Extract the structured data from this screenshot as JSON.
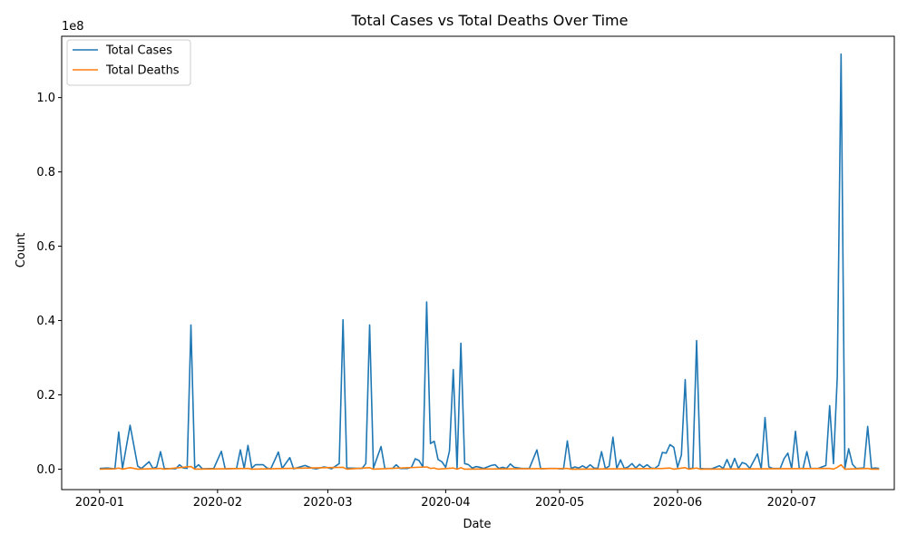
{
  "chart_data": {
    "type": "line",
    "title": "Total Cases vs Total Deaths Over Time",
    "xlabel": "Date",
    "ylabel": "Count",
    "scale_label": "1e8",
    "y_scale": 100000000,
    "ylim": [
      -5500000,
      116500000
    ],
    "xlim": [
      "2019-12-22",
      "2020-07-28"
    ],
    "x_ticks": [
      "2020-01-01",
      "2020-02-01",
      "2020-03-01",
      "2020-04-01",
      "2020-05-01",
      "2020-06-01",
      "2020-07-01"
    ],
    "x_tick_labels": [
      "2020-01",
      "2020-02",
      "2020-03",
      "2020-04",
      "2020-05",
      "2020-06",
      "2020-07"
    ],
    "y_ticks": [
      0,
      20000000,
      40000000,
      60000000,
      80000000,
      100000000
    ],
    "y_tick_labels": [
      "0.0",
      "0.2",
      "0.4",
      "0.6",
      "0.8",
      "1.0"
    ],
    "legend_position": "upper-left",
    "grid": false,
    "series": [
      {
        "name": "Total Cases",
        "color": "#1f77b4",
        "points": [
          [
            "2020-01-01",
            200000
          ],
          [
            "2020-01-03",
            300000
          ],
          [
            "2020-01-05",
            100000
          ],
          [
            "2020-01-06",
            10000000
          ],
          [
            "2020-01-07",
            200000
          ],
          [
            "2020-01-09",
            11800000
          ],
          [
            "2020-01-11",
            800000
          ],
          [
            "2020-01-12",
            200000
          ],
          [
            "2020-01-14",
            2000000
          ],
          [
            "2020-01-15",
            200000
          ],
          [
            "2020-01-16",
            600000
          ],
          [
            "2020-01-17",
            4700000
          ],
          [
            "2020-01-18",
            200000
          ],
          [
            "2020-01-21",
            100000
          ],
          [
            "2020-01-22",
            1200000
          ],
          [
            "2020-01-23",
            300000
          ],
          [
            "2020-01-24",
            200000
          ],
          [
            "2020-01-25",
            38800000
          ],
          [
            "2020-01-26",
            300000
          ],
          [
            "2020-01-27",
            1200000
          ],
          [
            "2020-01-28",
            100000
          ],
          [
            "2020-01-31",
            200000
          ],
          [
            "2020-02-02",
            4800000
          ],
          [
            "2020-02-03",
            100000
          ],
          [
            "2020-02-06",
            200000
          ],
          [
            "2020-02-07",
            5200000
          ],
          [
            "2020-02-08",
            200000
          ],
          [
            "2020-02-09",
            6400000
          ],
          [
            "2020-02-10",
            300000
          ],
          [
            "2020-02-11",
            1200000
          ],
          [
            "2020-02-13",
            1200000
          ],
          [
            "2020-02-14",
            300000
          ],
          [
            "2020-02-15",
            100000
          ],
          [
            "2020-02-17",
            4600000
          ],
          [
            "2020-02-18",
            200000
          ],
          [
            "2020-02-20",
            3100000
          ],
          [
            "2020-02-21",
            100000
          ],
          [
            "2020-02-23",
            700000
          ],
          [
            "2020-02-24",
            1000000
          ],
          [
            "2020-02-26",
            200000
          ],
          [
            "2020-02-27",
            100000
          ],
          [
            "2020-02-29",
            600000
          ],
          [
            "2020-03-01",
            400000
          ],
          [
            "2020-03-02",
            100000
          ],
          [
            "2020-03-04",
            1500000
          ],
          [
            "2020-03-05",
            40200000
          ],
          [
            "2020-03-06",
            300000
          ],
          [
            "2020-03-10",
            200000
          ],
          [
            "2020-03-11",
            1500000
          ],
          [
            "2020-03-12",
            38800000
          ],
          [
            "2020-03-13",
            300000
          ],
          [
            "2020-03-15",
            6100000
          ],
          [
            "2020-03-16",
            200000
          ],
          [
            "2020-03-18",
            200000
          ],
          [
            "2020-03-19",
            1200000
          ],
          [
            "2020-03-20",
            200000
          ],
          [
            "2020-03-22",
            200000
          ],
          [
            "2020-03-23",
            500000
          ],
          [
            "2020-03-24",
            2800000
          ],
          [
            "2020-03-25",
            2300000
          ],
          [
            "2020-03-26",
            600000
          ],
          [
            "2020-03-27",
            45000000
          ],
          [
            "2020-03-28",
            6900000
          ],
          [
            "2020-03-29",
            7500000
          ],
          [
            "2020-03-30",
            2600000
          ],
          [
            "2020-03-31",
            2000000
          ],
          [
            "2020-04-01",
            500000
          ],
          [
            "2020-04-02",
            4900000
          ],
          [
            "2020-04-03",
            26800000
          ],
          [
            "2020-04-04",
            200000
          ],
          [
            "2020-04-05",
            33900000
          ],
          [
            "2020-04-06",
            1500000
          ],
          [
            "2020-04-07",
            1200000
          ],
          [
            "2020-04-08",
            300000
          ],
          [
            "2020-04-09",
            700000
          ],
          [
            "2020-04-10",
            500000
          ],
          [
            "2020-04-11",
            200000
          ],
          [
            "2020-04-13",
            1000000
          ],
          [
            "2020-04-14",
            1200000
          ],
          [
            "2020-04-15",
            200000
          ],
          [
            "2020-04-16",
            500000
          ],
          [
            "2020-04-17",
            200000
          ],
          [
            "2020-04-18",
            1400000
          ],
          [
            "2020-04-19",
            500000
          ],
          [
            "2020-04-21",
            200000
          ],
          [
            "2020-04-22",
            200000
          ],
          [
            "2020-04-23",
            200000
          ],
          [
            "2020-04-25",
            5200000
          ],
          [
            "2020-04-26",
            100000
          ],
          [
            "2020-04-28",
            200000
          ],
          [
            "2020-04-30",
            200000
          ],
          [
            "2020-05-01",
            100000
          ],
          [
            "2020-05-02",
            100000
          ],
          [
            "2020-05-03",
            7600000
          ],
          [
            "2020-05-04",
            200000
          ],
          [
            "2020-05-05",
            600000
          ],
          [
            "2020-05-06",
            300000
          ],
          [
            "2020-05-07",
            900000
          ],
          [
            "2020-05-08",
            300000
          ],
          [
            "2020-05-09",
            1200000
          ],
          [
            "2020-05-10",
            300000
          ],
          [
            "2020-05-11",
            200000
          ],
          [
            "2020-05-12",
            4700000
          ],
          [
            "2020-05-13",
            200000
          ],
          [
            "2020-05-14",
            800000
          ],
          [
            "2020-05-15",
            8600000
          ],
          [
            "2020-05-16",
            200000
          ],
          [
            "2020-05-17",
            2500000
          ],
          [
            "2020-05-18",
            200000
          ],
          [
            "2020-05-19",
            600000
          ],
          [
            "2020-05-20",
            1500000
          ],
          [
            "2020-05-21",
            300000
          ],
          [
            "2020-05-22",
            1300000
          ],
          [
            "2020-05-23",
            500000
          ],
          [
            "2020-05-24",
            1200000
          ],
          [
            "2020-05-25",
            300000
          ],
          [
            "2020-05-26",
            200000
          ],
          [
            "2020-05-27",
            1000000
          ],
          [
            "2020-05-28",
            4500000
          ],
          [
            "2020-05-29",
            4300000
          ],
          [
            "2020-05-30",
            6600000
          ],
          [
            "2020-05-31",
            5900000
          ],
          [
            "2020-06-01",
            500000
          ],
          [
            "2020-06-02",
            3800000
          ],
          [
            "2020-06-03",
            24100000
          ],
          [
            "2020-06-04",
            100000
          ],
          [
            "2020-06-05",
            300000
          ],
          [
            "2020-06-06",
            34600000
          ],
          [
            "2020-06-07",
            200000
          ],
          [
            "2020-06-08",
            100000
          ],
          [
            "2020-06-10",
            100000
          ],
          [
            "2020-06-12",
            900000
          ],
          [
            "2020-06-13",
            200000
          ],
          [
            "2020-06-14",
            2600000
          ],
          [
            "2020-06-15",
            200000
          ],
          [
            "2020-06-16",
            2900000
          ],
          [
            "2020-06-17",
            200000
          ],
          [
            "2020-06-18",
            1800000
          ],
          [
            "2020-06-19",
            1400000
          ],
          [
            "2020-06-20",
            200000
          ],
          [
            "2020-06-22",
            4100000
          ],
          [
            "2020-06-23",
            100000
          ],
          [
            "2020-06-24",
            13900000
          ],
          [
            "2020-06-25",
            600000
          ],
          [
            "2020-06-26",
            200000
          ],
          [
            "2020-06-28",
            200000
          ],
          [
            "2020-06-29",
            2800000
          ],
          [
            "2020-06-30",
            4300000
          ],
          [
            "2020-07-01",
            200000
          ],
          [
            "2020-07-02",
            10200000
          ],
          [
            "2020-07-03",
            200000
          ],
          [
            "2020-07-04",
            200000
          ],
          [
            "2020-07-05",
            4700000
          ],
          [
            "2020-07-06",
            200000
          ],
          [
            "2020-07-08",
            200000
          ],
          [
            "2020-07-10",
            1000000
          ],
          [
            "2020-07-11",
            17100000
          ],
          [
            "2020-07-12",
            1500000
          ],
          [
            "2020-07-13",
            24800000
          ],
          [
            "2020-07-14",
            111700000
          ],
          [
            "2020-07-15",
            200000
          ],
          [
            "2020-07-16",
            5500000
          ],
          [
            "2020-07-17",
            1300000
          ],
          [
            "2020-07-18",
            200000
          ],
          [
            "2020-07-20",
            300000
          ],
          [
            "2020-07-21",
            11500000
          ],
          [
            "2020-07-22",
            200000
          ],
          [
            "2020-07-23",
            300000
          ],
          [
            "2020-07-24",
            200000
          ]
        ]
      },
      {
        "name": "Total Deaths",
        "color": "#ff7f0e",
        "points": [
          [
            "2020-01-01",
            0
          ],
          [
            "2020-01-05",
            100000
          ],
          [
            "2020-01-06",
            300000
          ],
          [
            "2020-01-07",
            0
          ],
          [
            "2020-01-09",
            400000
          ],
          [
            "2020-01-11",
            0
          ],
          [
            "2020-01-17",
            200000
          ],
          [
            "2020-01-18",
            0
          ],
          [
            "2020-01-25",
            700000
          ],
          [
            "2020-01-26",
            0
          ],
          [
            "2020-02-09",
            200000
          ],
          [
            "2020-02-10",
            0
          ],
          [
            "2020-03-05",
            500000
          ],
          [
            "2020-03-06",
            0
          ],
          [
            "2020-03-12",
            400000
          ],
          [
            "2020-03-13",
            0
          ],
          [
            "2020-03-27",
            600000
          ],
          [
            "2020-03-28",
            200000
          ],
          [
            "2020-03-29",
            300000
          ],
          [
            "2020-03-30",
            0
          ],
          [
            "2020-04-03",
            300000
          ],
          [
            "2020-04-04",
            0
          ],
          [
            "2020-04-05",
            400000
          ],
          [
            "2020-04-06",
            0
          ],
          [
            "2020-05-03",
            200000
          ],
          [
            "2020-05-04",
            0
          ],
          [
            "2020-05-28",
            200000
          ],
          [
            "2020-05-30",
            300000
          ],
          [
            "2020-05-31",
            0
          ],
          [
            "2020-06-03",
            400000
          ],
          [
            "2020-06-04",
            0
          ],
          [
            "2020-06-06",
            300000
          ],
          [
            "2020-06-07",
            0
          ],
          [
            "2020-07-11",
            200000
          ],
          [
            "2020-07-12",
            0
          ],
          [
            "2020-07-13",
            500000
          ],
          [
            "2020-07-14",
            1200000
          ],
          [
            "2020-07-15",
            0
          ],
          [
            "2020-07-21",
            200000
          ],
          [
            "2020-07-22",
            0
          ],
          [
            "2020-07-24",
            0
          ]
        ]
      }
    ]
  }
}
